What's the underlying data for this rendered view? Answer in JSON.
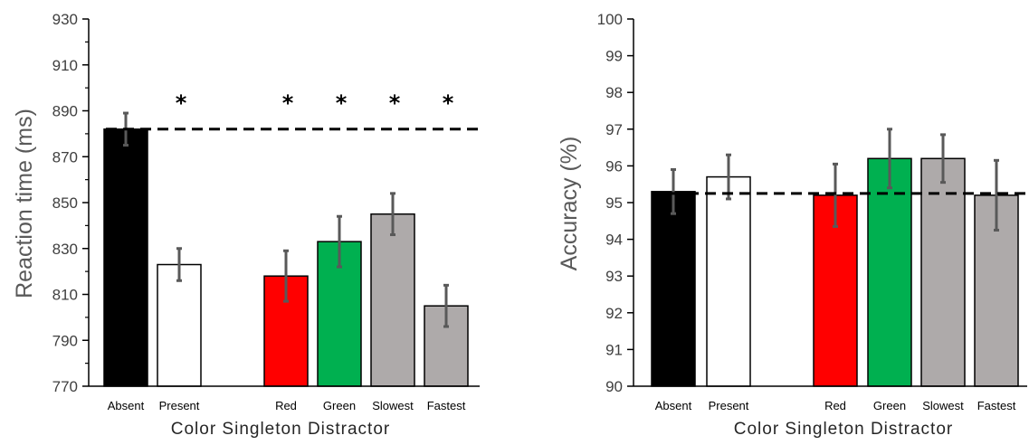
{
  "chart_data": [
    {
      "type": "bar",
      "categories": [
        "Absent",
        "Present",
        "Red",
        "Green",
        "Slowest",
        "Fastest"
      ],
      "values": [
        882,
        823,
        818,
        833,
        845,
        805
      ],
      "errors": [
        7,
        7,
        11,
        11,
        9,
        9
      ],
      "colors": [
        "#000000",
        "#ffffff",
        "#ff0000",
        "#00b050",
        "#aeaaaa",
        "#aeaaaa"
      ],
      "error_bar_color": "#595959",
      "ylabel": "Reaction time (ms)",
      "xlabel": "Color Singleton Distractor",
      "ylim": [
        770,
        930
      ],
      "yticks": [
        770,
        790,
        810,
        830,
        850,
        870,
        890,
        910,
        930
      ],
      "reference_line": 882,
      "significance_marks": [
        "",
        "*",
        "*",
        "*",
        "*",
        "*"
      ],
      "grid": false
    },
    {
      "type": "bar",
      "categories": [
        "Absent",
        "Present",
        "Red",
        "Green",
        "Slowest",
        "Fastest"
      ],
      "values": [
        95.3,
        95.7,
        95.2,
        96.2,
        96.2,
        95.2
      ],
      "errors": [
        0.6,
        0.6,
        0.85,
        0.8,
        0.65,
        0.95
      ],
      "colors": [
        "#000000",
        "#ffffff",
        "#ff0000",
        "#00b050",
        "#aeaaaa",
        "#aeaaaa"
      ],
      "error_bar_color": "#595959",
      "ylabel": "Accuracy (%)",
      "xlabel": "Color Singleton Distractor",
      "ylim": [
        90,
        100
      ],
      "yticks": [
        90,
        91,
        92,
        93,
        94,
        95,
        96,
        97,
        98,
        99,
        100
      ],
      "reference_line": 95.25,
      "significance_marks": [
        "",
        "",
        "",
        "",
        "",
        ""
      ],
      "grid": false
    }
  ]
}
